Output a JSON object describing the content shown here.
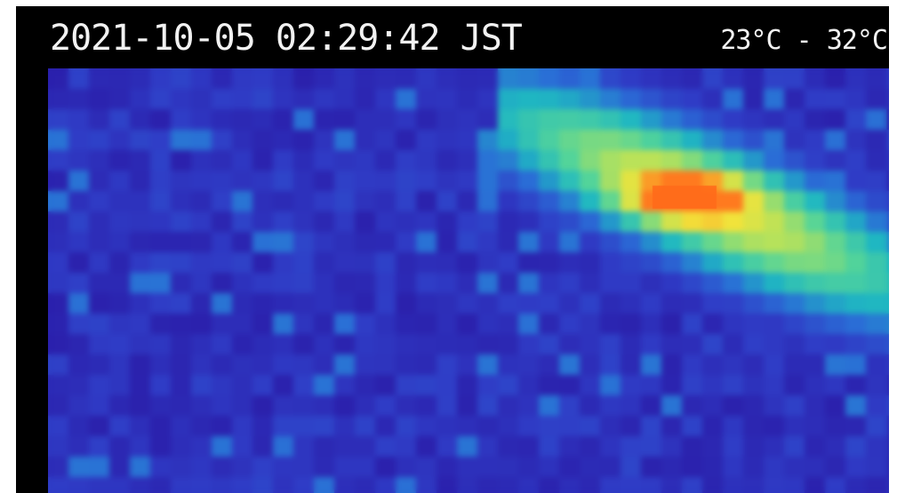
{
  "overlay": {
    "timestamp": "2021-10-05 02:29:42 JST",
    "temperature_range": "23°C - 32°C"
  },
  "thermal_image": {
    "palette": [
      "#2a1ca8",
      "#2f3cc6",
      "#2a6ed6",
      "#1fb7c2",
      "#53d49a",
      "#b8e25a",
      "#f2e33a",
      "#ff7a1f"
    ],
    "background_color": "#2c1db0",
    "hotspot_color": "#ff6a1a"
  }
}
